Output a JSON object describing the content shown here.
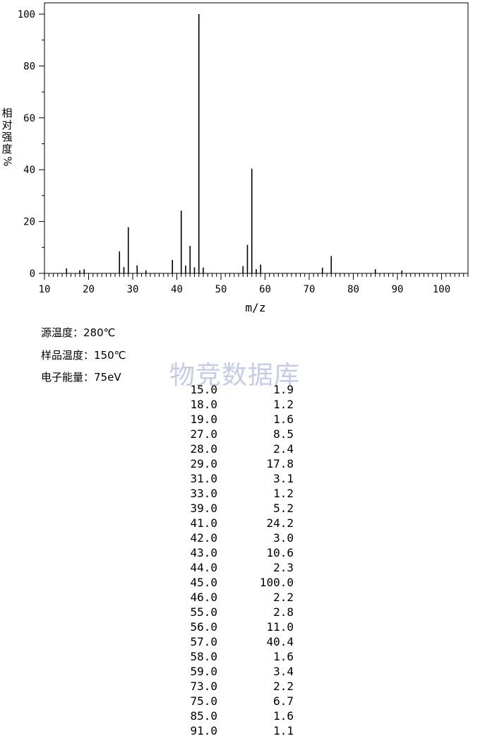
{
  "chart_data": {
    "type": "bar",
    "xlabel": "m/z",
    "ylabel": "相对强度%",
    "xlim": [
      10,
      106
    ],
    "ylim": [
      0,
      100
    ],
    "x_ticks": [
      "10",
      "20",
      "30",
      "40",
      "50",
      "60",
      "70",
      "80",
      "90",
      "100"
    ],
    "y_ticks": [
      "0",
      "20",
      "40",
      "60",
      "80",
      "100"
    ],
    "points": [
      {
        "x": 15.0,
        "y": 1.9
      },
      {
        "x": 18.0,
        "y": 1.2
      },
      {
        "x": 19.0,
        "y": 1.6
      },
      {
        "x": 27.0,
        "y": 8.5
      },
      {
        "x": 28.0,
        "y": 2.4
      },
      {
        "x": 29.0,
        "y": 17.8
      },
      {
        "x": 31.0,
        "y": 3.1
      },
      {
        "x": 33.0,
        "y": 1.2
      },
      {
        "x": 39.0,
        "y": 5.2
      },
      {
        "x": 41.0,
        "y": 24.2
      },
      {
        "x": 42.0,
        "y": 3.0
      },
      {
        "x": 43.0,
        "y": 10.6
      },
      {
        "x": 44.0,
        "y": 2.3
      },
      {
        "x": 45.0,
        "y": 100.0
      },
      {
        "x": 46.0,
        "y": 2.2
      },
      {
        "x": 55.0,
        "y": 2.8
      },
      {
        "x": 56.0,
        "y": 11.0
      },
      {
        "x": 57.0,
        "y": 40.4
      },
      {
        "x": 58.0,
        "y": 1.6
      },
      {
        "x": 59.0,
        "y": 3.4
      },
      {
        "x": 73.0,
        "y": 2.2
      },
      {
        "x": 75.0,
        "y": 6.7
      },
      {
        "x": 85.0,
        "y": 1.6
      },
      {
        "x": 91.0,
        "y": 1.1
      }
    ]
  },
  "meta": {
    "source_temp": "源温度：280℃",
    "sample_temp": "样品温度：150℃",
    "electron_energy": "电子能量：75eV"
  },
  "watermark": "物竞数据库",
  "peak_table": [
    {
      "mz": "15.0",
      "abundance": "1.9"
    },
    {
      "mz": "18.0",
      "abundance": "1.2"
    },
    {
      "mz": "19.0",
      "abundance": "1.6"
    },
    {
      "mz": "27.0",
      "abundance": "8.5"
    },
    {
      "mz": "28.0",
      "abundance": "2.4"
    },
    {
      "mz": "29.0",
      "abundance": "17.8"
    },
    {
      "mz": "31.0",
      "abundance": "3.1"
    },
    {
      "mz": "33.0",
      "abundance": "1.2"
    },
    {
      "mz": "39.0",
      "abundance": "5.2"
    },
    {
      "mz": "41.0",
      "abundance": "24.2"
    },
    {
      "mz": "42.0",
      "abundance": "3.0"
    },
    {
      "mz": "43.0",
      "abundance": "10.6"
    },
    {
      "mz": "44.0",
      "abundance": "2.3"
    },
    {
      "mz": "45.0",
      "abundance": "100.0"
    },
    {
      "mz": "46.0",
      "abundance": "2.2"
    },
    {
      "mz": "55.0",
      "abundance": "2.8"
    },
    {
      "mz": "56.0",
      "abundance": "11.0"
    },
    {
      "mz": "57.0",
      "abundance": "40.4"
    },
    {
      "mz": "58.0",
      "abundance": "1.6"
    },
    {
      "mz": "59.0",
      "abundance": "3.4"
    },
    {
      "mz": "73.0",
      "abundance": "2.2"
    },
    {
      "mz": "75.0",
      "abundance": "6.7"
    },
    {
      "mz": "85.0",
      "abundance": "1.6"
    },
    {
      "mz": "91.0",
      "abundance": "1.1"
    }
  ]
}
